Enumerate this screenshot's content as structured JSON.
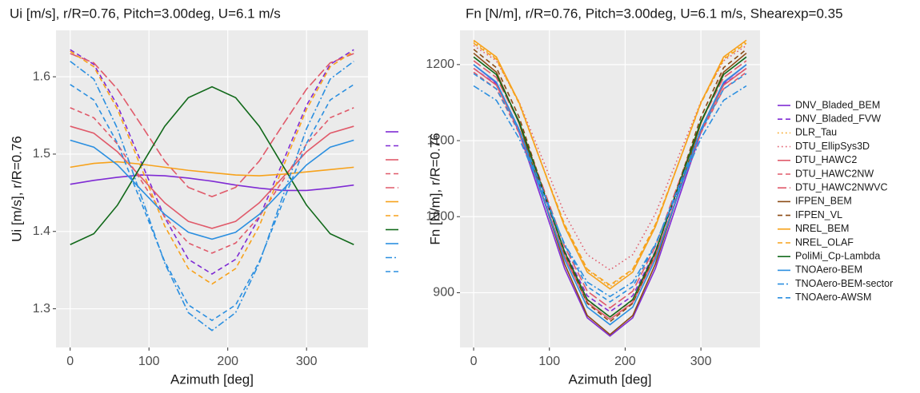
{
  "chart_data": [
    {
      "type": "line",
      "title": "Ui [m/s], r/R=0.76, Pitch=3.00deg, U=6.1 m/s",
      "x_label": "Azimuth [deg]",
      "y_label": "Ui [m/s], r/R=0.76",
      "x": [
        0,
        30,
        60,
        90,
        120,
        150,
        180,
        210,
        240,
        270,
        300,
        330,
        360
      ],
      "xlim": [
        -18,
        378
      ],
      "xticks": [
        0,
        100,
        200,
        300
      ],
      "ylim": [
        1.25,
        1.66
      ],
      "yticks": [
        1.3,
        1.4,
        1.5,
        1.6
      ],
      "grid": true,
      "series": [
        {
          "color": "#7f2bd4",
          "linetype": "solid",
          "values": [
            1.461,
            1.466,
            1.47,
            1.473,
            1.472,
            1.469,
            1.465,
            1.46,
            1.456,
            1.453,
            1.453,
            1.456,
            1.46
          ]
        },
        {
          "color": "#7f2bd4",
          "linetype": "dashed",
          "values": [
            1.635,
            1.616,
            1.563,
            1.49,
            1.418,
            1.364,
            1.345,
            1.364,
            1.418,
            1.49,
            1.563,
            1.616,
            1.635
          ]
        },
        {
          "color": "#e05a6a",
          "linetype": "solid",
          "values": [
            1.536,
            1.527,
            1.503,
            1.47,
            1.437,
            1.413,
            1.404,
            1.413,
            1.437,
            1.47,
            1.503,
            1.527,
            1.536
          ]
        },
        {
          "color": "#e05a6a",
          "linetype": "dashed",
          "values": [
            1.56,
            1.547,
            1.513,
            1.466,
            1.419,
            1.385,
            1.372,
            1.385,
            1.419,
            1.466,
            1.513,
            1.547,
            1.56
          ]
        },
        {
          "color": "#e05a6a",
          "linetype": "longdash",
          "values": [
            1.63,
            1.618,
            1.584,
            1.538,
            1.491,
            1.457,
            1.445,
            1.457,
            1.491,
            1.538,
            1.584,
            1.618,
            1.63
          ]
        },
        {
          "color": "#f7a21b",
          "linetype": "solid",
          "values": [
            1.483,
            1.488,
            1.49,
            1.487,
            1.483,
            1.479,
            1.476,
            1.473,
            1.472,
            1.474,
            1.477,
            1.48,
            1.483
          ]
        },
        {
          "color": "#f7a21b",
          "linetype": "dashed",
          "values": [
            1.633,
            1.613,
            1.558,
            1.483,
            1.407,
            1.352,
            1.332,
            1.352,
            1.407,
            1.483,
            1.558,
            1.613,
            1.633
          ]
        },
        {
          "color": "#11691a",
          "linetype": "solid",
          "values": [
            1.383,
            1.397,
            1.434,
            1.485,
            1.536,
            1.573,
            1.587,
            1.573,
            1.536,
            1.485,
            1.434,
            1.397,
            1.383
          ]
        },
        {
          "color": "#2b8fe0",
          "linetype": "solid",
          "values": [
            1.518,
            1.509,
            1.486,
            1.454,
            1.422,
            1.399,
            1.39,
            1.399,
            1.422,
            1.454,
            1.486,
            1.509,
            1.518
          ]
        },
        {
          "color": "#2b8fe0",
          "linetype": "dotdash",
          "values": [
            1.62,
            1.597,
            1.533,
            1.446,
            1.359,
            1.295,
            1.272,
            1.295,
            1.359,
            1.446,
            1.533,
            1.597,
            1.62
          ]
        },
        {
          "color": "#2b8fe0",
          "linetype": "dashed",
          "values": [
            1.59,
            1.57,
            1.514,
            1.438,
            1.361,
            1.305,
            1.285,
            1.305,
            1.361,
            1.438,
            1.514,
            1.57,
            1.59
          ]
        }
      ]
    },
    {
      "type": "line",
      "title": "Fn [N/m], r/R=0.76, Pitch=3.00deg, U=6.1 m/s, Shearexp=0.35",
      "x_label": "Azimuth [deg]",
      "y_label": "Fn [N/m], r/R=0.76",
      "x": [
        0,
        30,
        60,
        90,
        120,
        150,
        180,
        210,
        240,
        270,
        300,
        330,
        360
      ],
      "xlim": [
        -18,
        378
      ],
      "xticks": [
        0,
        100,
        200,
        300
      ],
      "ylim": [
        828,
        1245
      ],
      "yticks": [
        900,
        1000,
        1100,
        1200
      ],
      "grid": true,
      "series": [
        {
          "name": "DNV_Bladed_BEM",
          "color": "#7f2bd4",
          "linetype": "solid",
          "values": [
            1200,
            1176,
            1111,
            1022,
            932,
            867,
            843,
            867,
            932,
            1022,
            1111,
            1176,
            1200
          ]
        },
        {
          "name": "DNV_Bladed_FVW",
          "color": "#7f2bd4",
          "linetype": "dashed",
          "values": [
            1195,
            1174,
            1115,
            1035,
            955,
            896,
            875,
            896,
            955,
            1035,
            1115,
            1174,
            1195
          ]
        },
        {
          "name": "DLR_Tau",
          "color": "#f7a21b",
          "linetype": "dotted",
          "values": [
            1230,
            1208,
            1150,
            1069,
            989,
            930,
            908,
            930,
            989,
            1069,
            1150,
            1208,
            1230
          ]
        },
        {
          "name": "DTU_EllipSys3D",
          "color": "#e05a6a",
          "linetype": "dotted",
          "values": [
            1225,
            1205,
            1151,
            1078,
            1004,
            950,
            930,
            950,
            1004,
            1078,
            1151,
            1205,
            1225
          ]
        },
        {
          "name": "DTU_HAWC2",
          "color": "#e05a6a",
          "linetype": "solid",
          "values": [
            1195,
            1173,
            1113,
            1030,
            948,
            887,
            865,
            887,
            948,
            1030,
            1113,
            1173,
            1195
          ]
        },
        {
          "name": "DTU_HAWC2NW",
          "color": "#e05a6a",
          "linetype": "dashed",
          "values": [
            1190,
            1168,
            1110,
            1029,
            949,
            890,
            868,
            890,
            949,
            1029,
            1110,
            1168,
            1190
          ]
        },
        {
          "name": "DTU_HAWC2NWVC",
          "color": "#e05a6a",
          "linetype": "longdash",
          "values": [
            1205,
            1183,
            1124,
            1043,
            961,
            902,
            880,
            902,
            961,
            1043,
            1124,
            1183,
            1205
          ]
        },
        {
          "name": "IFPEN_BEM",
          "color": "#8b4a14",
          "linetype": "solid",
          "values": [
            1215,
            1190,
            1123,
            1030,
            938,
            870,
            845,
            870,
            938,
            1030,
            1123,
            1190,
            1215
          ]
        },
        {
          "name": "IFPEN_VL",
          "color": "#8b4a14",
          "linetype": "dashed",
          "values": [
            1220,
            1196,
            1131,
            1041,
            952,
            886,
            862,
            886,
            952,
            1041,
            1131,
            1196,
            1220
          ]
        },
        {
          "name": "NREL_BEM",
          "color": "#f7a21b",
          "linetype": "solid",
          "values": [
            1232,
            1210,
            1150,
            1069,
            987,
            927,
            905,
            927,
            987,
            1069,
            1150,
            1210,
            1232
          ]
        },
        {
          "name": "NREL_OLAF",
          "color": "#f7a21b",
          "linetype": "dashed",
          "values": [
            1228,
            1207,
            1149,
            1069,
            990,
            931,
            910,
            931,
            990,
            1069,
            1149,
            1207,
            1228
          ]
        },
        {
          "name": "PoliMi_Cp-Lambda",
          "color": "#11691a",
          "linetype": "solid",
          "values": [
            1210,
            1187,
            1125,
            1039,
            954,
            891,
            868,
            891,
            954,
            1039,
            1125,
            1187,
            1210
          ]
        },
        {
          "name": "TNOAero-BEM",
          "color": "#2b8fe0",
          "linetype": "solid",
          "values": [
            1200,
            1177,
            1115,
            1029,
            944,
            881,
            858,
            881,
            944,
            1029,
            1115,
            1177,
            1200
          ]
        },
        {
          "name": "TNOAero-BEM-sector",
          "color": "#2b8fe0",
          "linetype": "dotdash",
          "values": [
            1172,
            1153,
            1103,
            1034,
            964,
            914,
            895,
            914,
            964,
            1034,
            1103,
            1153,
            1172
          ]
        },
        {
          "name": "TNOAero-AWSM",
          "color": "#2b8fe0",
          "linetype": "dashed",
          "values": [
            1188,
            1168,
            1113,
            1038,
            963,
            908,
            888,
            908,
            963,
            1038,
            1113,
            1168,
            1188
          ]
        }
      ]
    }
  ]
}
